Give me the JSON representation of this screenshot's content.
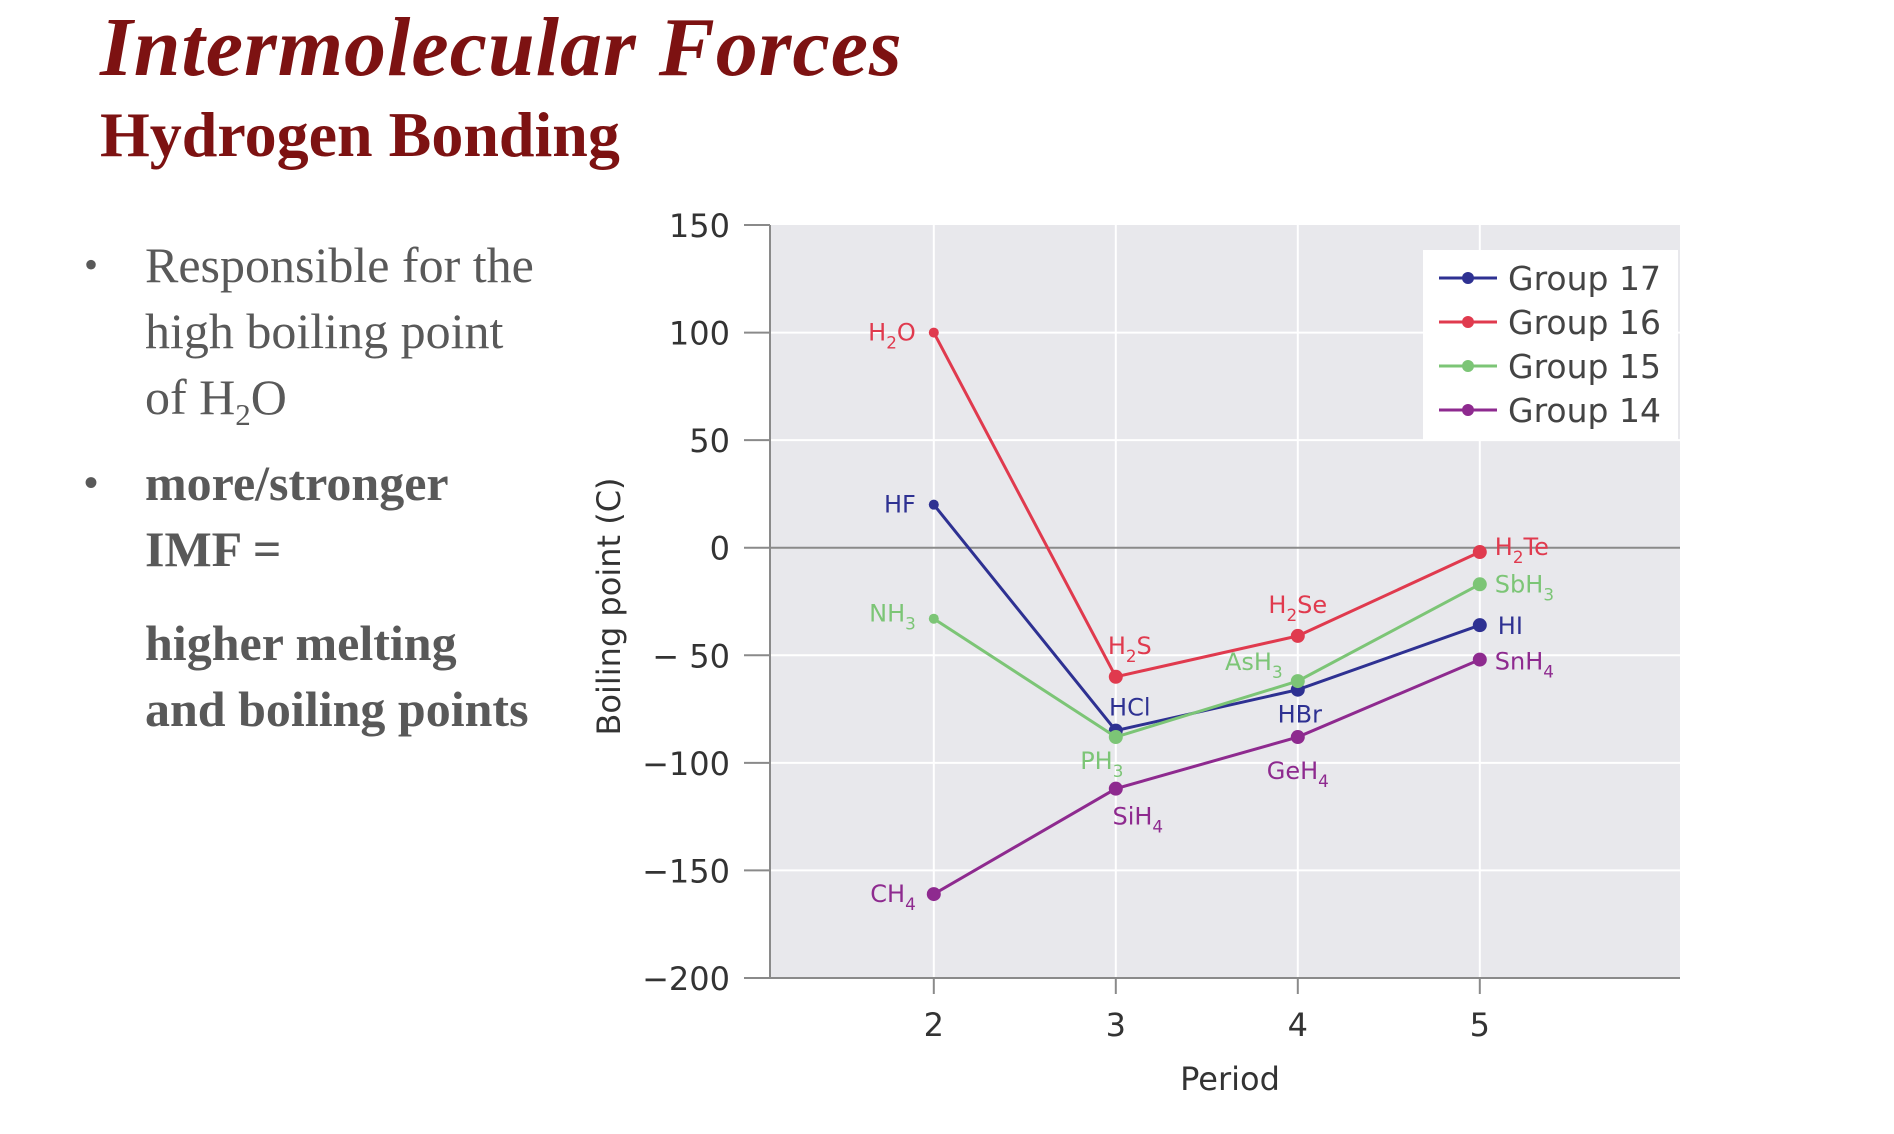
{
  "slide": {
    "title": "Intermolecular Forces",
    "subtitle": "Hydrogen Bonding",
    "bullet1": {
      "text": "Responsible for the high boiling point of H",
      "sub": "2",
      "tail": "O"
    },
    "bullet2": "more/stronger IMF =",
    "bullet2_cont": "higher melting and boiling points"
  },
  "colors": {
    "title": "#7d1212",
    "body_text": "#595959",
    "plot_bg": "#e8e8ec"
  },
  "chart_data": {
    "type": "line",
    "xlabel": "Period",
    "ylabel": "Boiling point (C)",
    "x": [
      2,
      3,
      4,
      5
    ],
    "xlim": [
      1.1,
      6.1
    ],
    "ylim": [
      -200,
      150
    ],
    "yticks": [
      150,
      100,
      50,
      0,
      -50,
      -100,
      -150,
      -200
    ],
    "ytick_labels": [
      "150",
      "100",
      "50",
      "0",
      "− 50",
      "−100",
      "−150",
      "−200"
    ],
    "xticks": [
      2,
      3,
      4,
      5
    ],
    "grid": true,
    "legend_position": "top-right",
    "series": [
      {
        "name": "Group 17",
        "color": "#2e3192",
        "values": [
          20,
          -85,
          -66,
          -36
        ],
        "labels": [
          {
            "main": "HF",
            "sub": "",
            "tail": ""
          },
          {
            "main": "HCl",
            "sub": "",
            "tail": ""
          },
          {
            "main": "HBr",
            "sub": "",
            "tail": ""
          },
          {
            "main": "HI",
            "sub": "",
            "tail": ""
          }
        ]
      },
      {
        "name": "Group 16",
        "color": "#e03a4e",
        "values": [
          100,
          -60,
          -41,
          -2
        ],
        "labels": [
          {
            "main": "H",
            "sub": "2",
            "tail": "O"
          },
          {
            "main": "H",
            "sub": "2",
            "tail": "S"
          },
          {
            "main": "H",
            "sub": "2",
            "tail": "Se"
          },
          {
            "main": "H",
            "sub": "2",
            "tail": "Te"
          }
        ]
      },
      {
        "name": "Group 15",
        "color": "#7cc576",
        "values": [
          -33,
          -88,
          -62,
          -17
        ],
        "labels": [
          {
            "main": "NH",
            "sub": "3",
            "tail": ""
          },
          {
            "main": "PH",
            "sub": "3",
            "tail": ""
          },
          {
            "main": "AsH",
            "sub": "3",
            "tail": ""
          },
          {
            "main": "SbH",
            "sub": "3",
            "tail": ""
          }
        ]
      },
      {
        "name": "Group 14",
        "color": "#8e2a8f",
        "values": [
          -161,
          -112,
          -88,
          -52
        ],
        "labels": [
          {
            "main": "CH",
            "sub": "4",
            "tail": ""
          },
          {
            "main": "SiH",
            "sub": "4",
            "tail": ""
          },
          {
            "main": "GeH",
            "sub": "4",
            "tail": ""
          },
          {
            "main": "SnH",
            "sub": "4",
            "tail": ""
          }
        ]
      }
    ]
  }
}
